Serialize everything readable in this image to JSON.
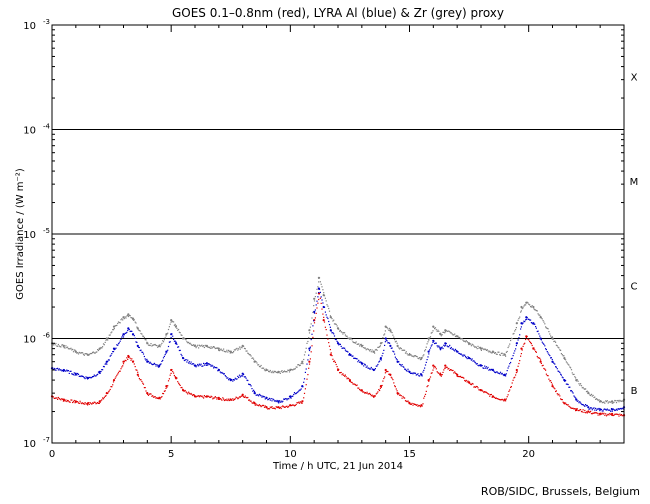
{
  "chart_data": {
    "type": "scatter",
    "title": "GOES 0.1–0.8nm (red), LYRA Al (blue) & Zr (grey) proxy",
    "xlabel": "Time / h UTC, 21 Jun 2014",
    "ylabel": "GOES Irradiance / (W m⁻²)",
    "credit": "ROB/SIDC, Brussels, Belgium",
    "xlim": [
      0,
      24
    ],
    "ylim": [
      1e-07,
      0.001
    ],
    "yscale": "log",
    "x_ticks": [
      0,
      5,
      10,
      15,
      20
    ],
    "x_tick_labels": [
      "0",
      "5",
      "10",
      "15",
      "20"
    ],
    "y_ticks": [
      1e-07,
      1e-06,
      1e-05,
      0.0001,
      0.001
    ],
    "y_tick_labels": [
      {
        "base": "10",
        "exp": "-7"
      },
      {
        "base": "10",
        "exp": "-6"
      },
      {
        "base": "10",
        "exp": "-5"
      },
      {
        "base": "10",
        "exp": "-4"
      },
      {
        "base": "10",
        "exp": "-3"
      }
    ],
    "flare_class_lines": [
      1e-06,
      1e-05,
      0.0001
    ],
    "flare_classes": [
      {
        "label": "B",
        "y": 3.2e-07
      },
      {
        "label": "C",
        "y": 3.2e-06
      },
      {
        "label": "M",
        "y": 3.2e-05
      },
      {
        "label": "X",
        "y": 0.00032
      }
    ],
    "colors": {
      "goes": "#e00000",
      "lyra_al": "#0000c8",
      "lyra_zr": "#808080",
      "frame": "#000000"
    },
    "series": [
      {
        "color": "#e00000",
        "x": [
          0,
          0.5,
          1,
          1.5,
          2,
          2.3,
          2.6,
          3.0,
          3.2,
          3.4,
          3.6,
          4.0,
          4.5,
          4.8,
          5.0,
          5.2,
          5.5,
          6.0,
          6.5,
          7.0,
          7.5,
          8.0,
          8.5,
          9.0,
          9.5,
          10.0,
          10.5,
          10.8,
          11.0,
          11.2,
          11.4,
          11.7,
          12.0,
          12.5,
          13.0,
          13.5,
          13.8,
          14.0,
          14.2,
          14.5,
          15.0,
          15.5,
          15.8,
          16.0,
          16.3,
          16.5,
          17.0,
          17.5,
          18.0,
          18.5,
          19.0,
          19.5,
          19.7,
          19.9,
          20.2,
          20.5,
          21.0,
          21.5,
          22.0,
          22.5,
          23.0,
          23.5,
          24.0
        ],
        "y": [
          2.8e-07,
          2.6e-07,
          2.5e-07,
          2.4e-07,
          2.5e-07,
          3e-07,
          4e-07,
          6e-07,
          6.8e-07,
          6e-07,
          4.5e-07,
          3e-07,
          2.7e-07,
          3.5e-07,
          5e-07,
          4.2e-07,
          3.2e-07,
          2.8e-07,
          2.8e-07,
          2.7e-07,
          2.6e-07,
          2.9e-07,
          2.4e-07,
          2.2e-07,
          2.2e-07,
          2.3e-07,
          2.5e-07,
          6e-07,
          1.5e-06,
          2.7e-06,
          1.5e-06,
          7e-07,
          5e-07,
          4e-07,
          3.2e-07,
          2.8e-07,
          3.5e-07,
          5e-07,
          4.5e-07,
          3e-07,
          2.4e-07,
          2.3e-07,
          4e-07,
          5.5e-07,
          4.5e-07,
          5.5e-07,
          4.5e-07,
          3.8e-07,
          3.2e-07,
          2.8e-07,
          2.6e-07,
          5e-07,
          8e-07,
          1.05e-06,
          8e-07,
          6e-07,
          3.5e-07,
          2.4e-07,
          2.1e-07,
          2e-07,
          1.9e-07,
          1.9e-07,
          1.85e-07
        ]
      },
      {
        "color": "#0000c8",
        "x": [
          0,
          0.5,
          1,
          1.5,
          2,
          2.3,
          2.6,
          3.0,
          3.2,
          3.4,
          3.6,
          4.0,
          4.5,
          4.8,
          5.0,
          5.2,
          5.5,
          6.0,
          6.5,
          7.0,
          7.5,
          8.0,
          8.5,
          9.0,
          9.5,
          10.0,
          10.5,
          10.8,
          11.0,
          11.2,
          11.4,
          11.7,
          12.0,
          12.5,
          13.0,
          13.5,
          13.8,
          14.0,
          14.2,
          14.5,
          15.0,
          15.5,
          15.8,
          16.0,
          16.3,
          16.5,
          17.0,
          17.5,
          18.0,
          18.5,
          19.0,
          19.5,
          19.7,
          19.9,
          20.2,
          20.5,
          21.0,
          21.5,
          22.0,
          22.5,
          23.0,
          23.5,
          24.0
        ],
        "y": [
          5.2e-07,
          5e-07,
          4.6e-07,
          4.2e-07,
          4.8e-07,
          6e-07,
          8e-07,
          1.1e-06,
          1.25e-06,
          1.1e-06,
          8.5e-07,
          6e-07,
          5.5e-07,
          7.5e-07,
          1.1e-06,
          9e-07,
          6.5e-07,
          5.5e-07,
          5.8e-07,
          5e-07,
          4e-07,
          4.6e-07,
          3e-07,
          2.7e-07,
          2.5e-07,
          2.8e-07,
          3.5e-07,
          8e-07,
          1.8e-06,
          3e-06,
          2e-06,
          1.2e-06,
          9e-07,
          7e-07,
          5.8e-07,
          5e-07,
          6.5e-07,
          1e-06,
          8.5e-07,
          6e-07,
          4.8e-07,
          4.5e-07,
          7.5e-07,
          9.5e-07,
          8e-07,
          9e-07,
          7.5e-07,
          6.5e-07,
          5.5e-07,
          5e-07,
          4.5e-07,
          9e-07,
          1.4e-06,
          1.6e-06,
          1.4e-06,
          1e-06,
          6e-07,
          4e-07,
          2.6e-07,
          2.2e-07,
          2.1e-07,
          2.1e-07,
          2.2e-07
        ]
      },
      {
        "color": "#808080",
        "x": [
          0,
          0.5,
          1,
          1.5,
          2,
          2.3,
          2.6,
          3.0,
          3.2,
          3.4,
          3.6,
          4.0,
          4.5,
          4.8,
          5.0,
          5.2,
          5.5,
          6.0,
          6.5,
          7.0,
          7.5,
          8.0,
          8.5,
          9.0,
          9.5,
          10.0,
          10.5,
          10.8,
          11.0,
          11.2,
          11.4,
          11.7,
          12.0,
          12.5,
          13.0,
          13.5,
          13.8,
          14.0,
          14.2,
          14.5,
          15.0,
          15.5,
          15.8,
          16.0,
          16.3,
          16.5,
          17.0,
          17.5,
          18.0,
          18.5,
          19.0,
          19.5,
          19.7,
          19.9,
          20.2,
          20.5,
          21.0,
          21.5,
          22.0,
          22.5,
          23.0,
          23.5,
          24.0
        ],
        "y": [
          9e-07,
          8.5e-07,
          7.5e-07,
          7e-07,
          8e-07,
          1e-06,
          1.3e-06,
          1.6e-06,
          1.7e-06,
          1.55e-06,
          1.25e-06,
          9e-07,
          8.5e-07,
          1.1e-06,
          1.5e-06,
          1.3e-06,
          1e-06,
          8.5e-07,
          8.5e-07,
          8e-07,
          7.5e-07,
          8.5e-07,
          6e-07,
          5e-07,
          4.8e-07,
          5e-07,
          6e-07,
          1.2e-06,
          2.4e-06,
          3.8e-06,
          2.6e-06,
          1.6e-06,
          1.25e-06,
          1e-06,
          8.5e-07,
          7.5e-07,
          9e-07,
          1.3e-06,
          1.2e-06,
          8.5e-07,
          7e-07,
          6.5e-07,
          1e-06,
          1.3e-06,
          1.1e-06,
          1.2e-06,
          1.05e-06,
          9e-07,
          8e-07,
          7.5e-07,
          7e-07,
          1.4e-06,
          2e-06,
          2.2e-06,
          2e-06,
          1.6e-06,
          1e-06,
          6.5e-07,
          4e-07,
          3e-07,
          2.5e-07,
          2.5e-07,
          2.6e-07
        ]
      }
    ]
  }
}
